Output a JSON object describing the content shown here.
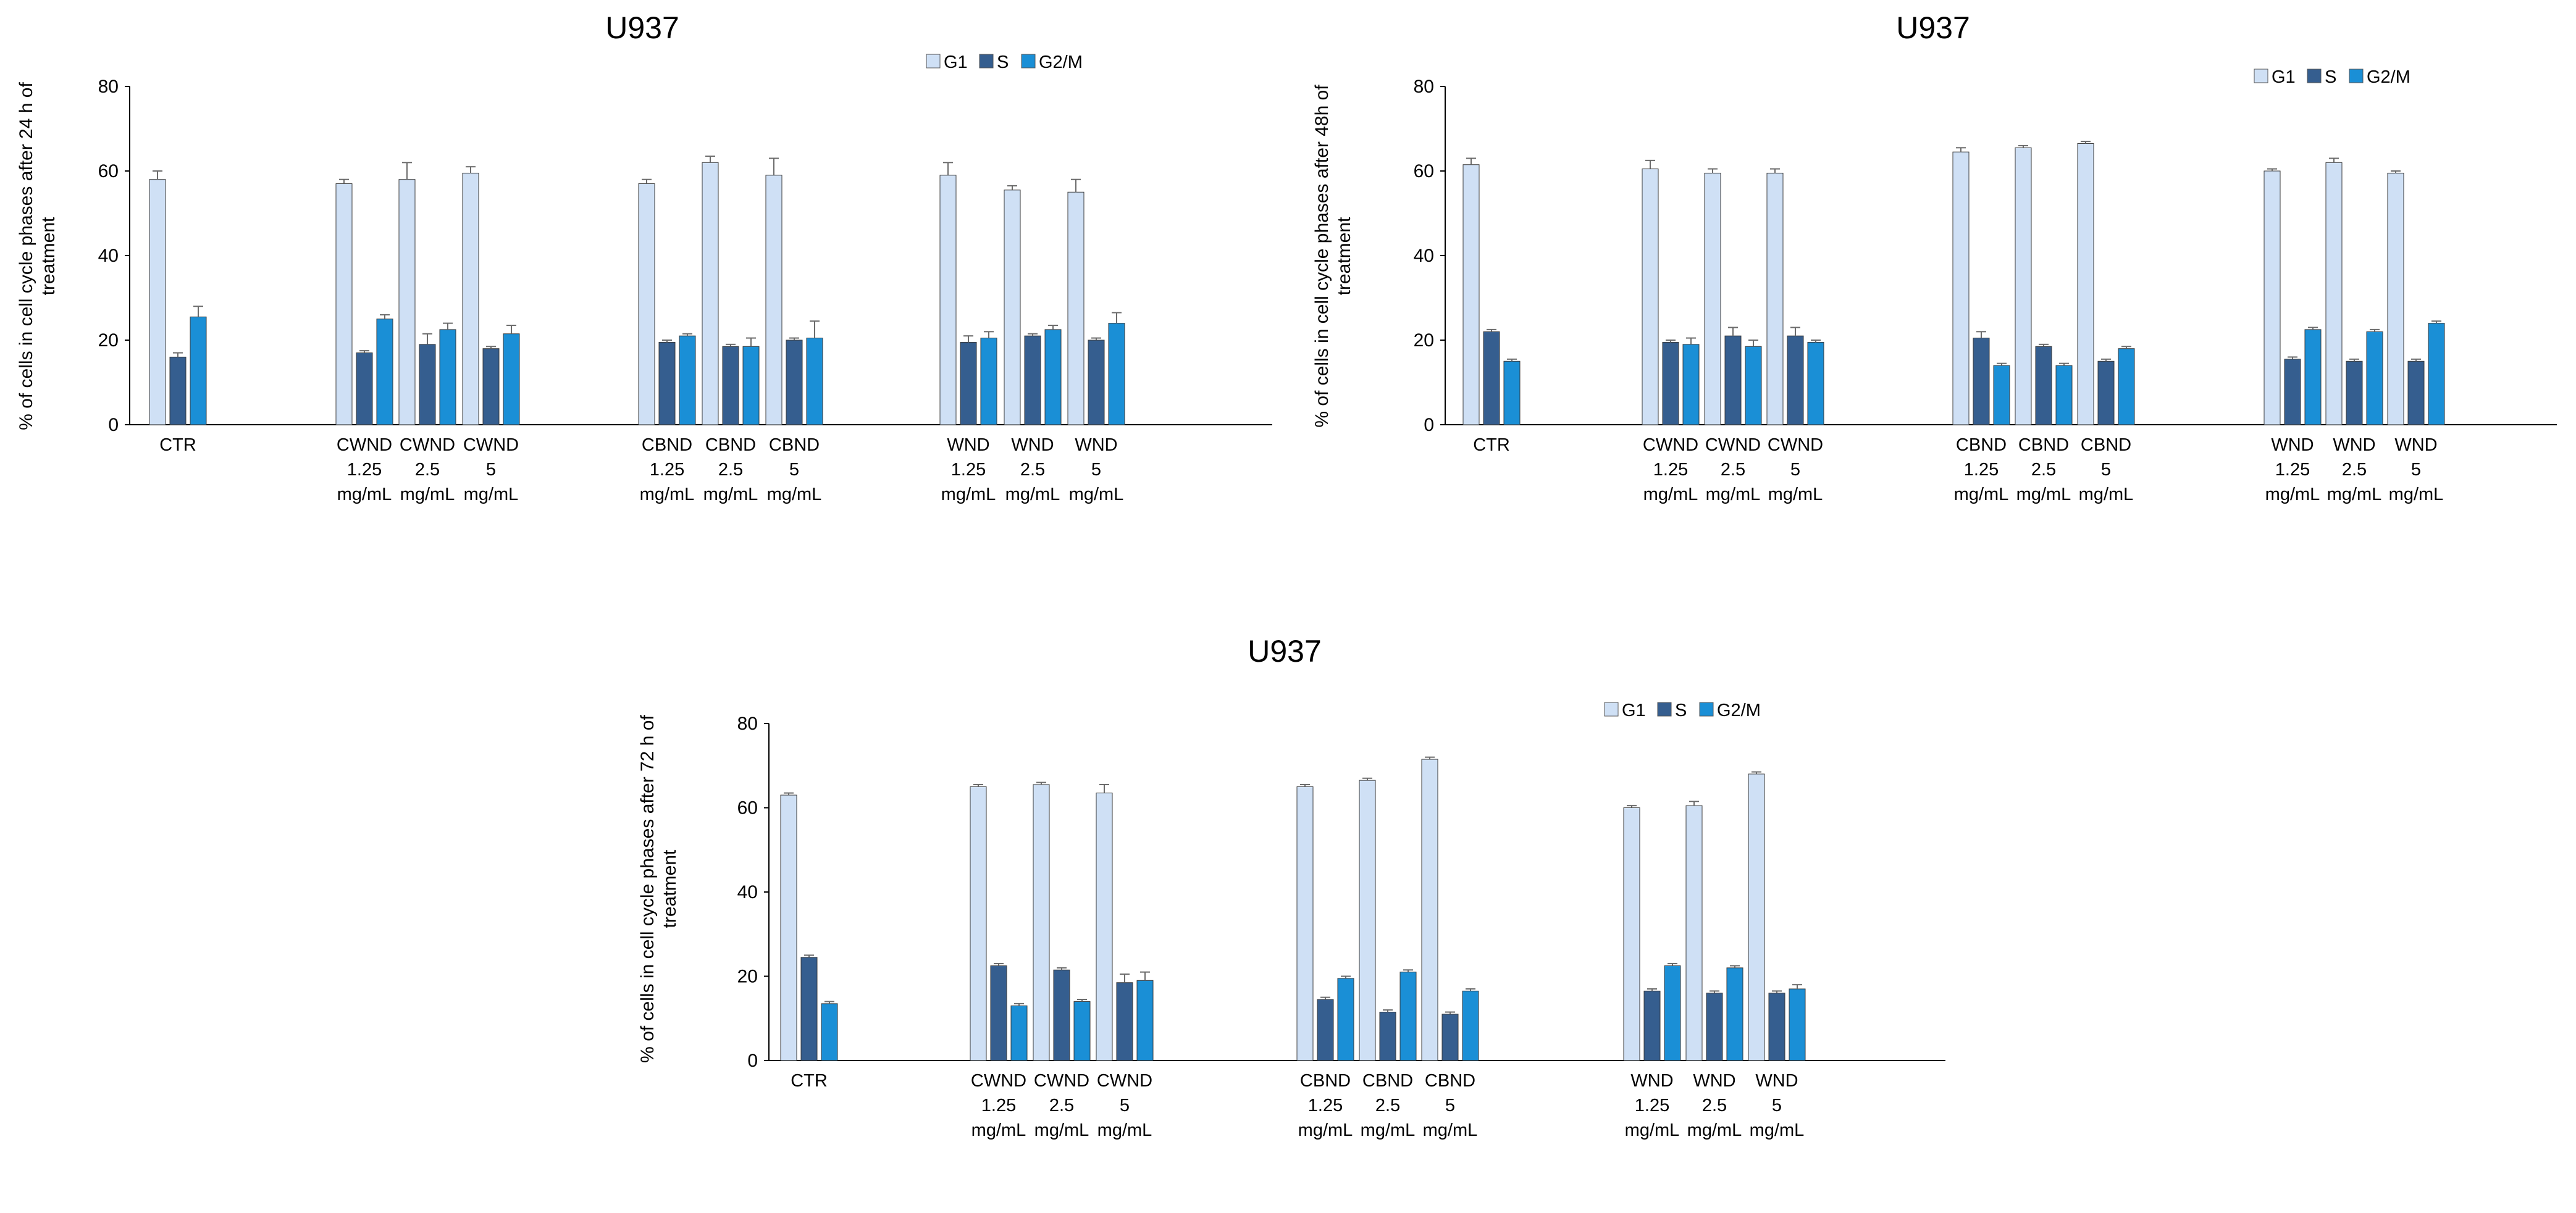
{
  "colors": {
    "G1": "#cfe0f5",
    "S": "#355e8f",
    "G2/M": "#1a8fd6",
    "axis": "#000000",
    "error": "#6b6b6b"
  },
  "chart_data": [
    {
      "type": "bar",
      "title": "U937",
      "ylabel_lines": [
        "% of cells in cell cycle phases after 24 h of",
        "treatment"
      ],
      "ylim": [
        0,
        80
      ],
      "yticks": [
        "0",
        "20",
        "40",
        "60",
        "80"
      ],
      "legend": [
        "G1",
        "S",
        "G2/M"
      ],
      "groups": [
        {
          "label": [
            "CTR"
          ],
          "items": [
            0
          ]
        },
        {
          "label": [
            "CWND",
            "1.25",
            "mg/mL"
          ],
          "items": [
            1,
            2,
            3
          ]
        },
        {
          "label": [
            "CBND",
            "1.25",
            "mg/mL"
          ],
          "items": [
            4,
            5,
            6
          ]
        },
        {
          "label": [
            "WND",
            "1.25",
            "mg/mL"
          ],
          "items": [
            7,
            8,
            9
          ]
        }
      ],
      "categories": [
        [
          "CTR"
        ],
        [
          "CWND",
          "1.25",
          "mg/mL"
        ],
        [
          "CWND",
          "2.5",
          "mg/mL"
        ],
        [
          "CWND",
          "5",
          "mg/mL"
        ],
        [
          "CBND",
          "1.25",
          "mg/mL"
        ],
        [
          "CBND",
          "2.5",
          "mg/mL"
        ],
        [
          "CBND",
          "5",
          "mg/mL"
        ],
        [
          "WND",
          "1.25",
          "mg/mL"
        ],
        [
          "WND",
          "2.5",
          "mg/mL"
        ],
        [
          "WND",
          "5",
          "mg/mL"
        ]
      ],
      "series": [
        {
          "name": "G1",
          "values": [
            58,
            57,
            58,
            59.5,
            57,
            62,
            59,
            59,
            55.5,
            55
          ],
          "errors": [
            2,
            1,
            4,
            1.5,
            1,
            1.5,
            4,
            3,
            1,
            3
          ]
        },
        {
          "name": "S",
          "values": [
            16,
            17,
            19,
            18,
            19.5,
            18.5,
            20,
            19.5,
            21,
            20
          ],
          "errors": [
            1,
            0.5,
            2.5,
            0.5,
            0.5,
            0.5,
            0.5,
            1.5,
            0.5,
            0.5
          ]
        },
        {
          "name": "G2/M",
          "values": [
            25.5,
            25,
            22.5,
            21.5,
            21,
            18.5,
            20.5,
            20.5,
            22.5,
            24
          ],
          "errors": [
            2.5,
            1,
            1.5,
            2,
            0.5,
            2,
            4,
            1.5,
            1,
            2.5
          ]
        }
      ]
    },
    {
      "type": "bar",
      "title": "U937",
      "ylabel_lines": [
        "% of cells in cell cycle phases after 48h of",
        "treatment"
      ],
      "ylim": [
        0,
        80
      ],
      "yticks": [
        "0",
        "20",
        "40",
        "60",
        "80"
      ],
      "legend": [
        "G1",
        "S",
        "G2/M"
      ],
      "categories": [
        [
          "CTR"
        ],
        [
          "CWND",
          "1.25",
          "mg/mL"
        ],
        [
          "CWND",
          "2.5",
          "mg/mL"
        ],
        [
          "CWND",
          "5",
          "mg/mL"
        ],
        [
          "CBND",
          "1.25",
          "mg/mL"
        ],
        [
          "CBND",
          "2.5",
          "mg/mL"
        ],
        [
          "CBND",
          "5",
          "mg/mL"
        ],
        [
          "WND",
          "1.25",
          "mg/mL"
        ],
        [
          "WND",
          "2.5",
          "mg/mL"
        ],
        [
          "WND",
          "5",
          "mg/mL"
        ]
      ],
      "series": [
        {
          "name": "G1",
          "values": [
            61.5,
            60.5,
            59.5,
            59.5,
            64.5,
            65.5,
            66.5,
            60,
            62,
            59.5
          ],
          "errors": [
            1.5,
            2,
            1,
            1,
            1,
            0.5,
            0.5,
            0.5,
            1,
            0.5
          ]
        },
        {
          "name": "S",
          "values": [
            22,
            19.5,
            21,
            21,
            20.5,
            18.5,
            15,
            15.5,
            15,
            15
          ],
          "errors": [
            0.5,
            0.5,
            2,
            2,
            1.5,
            0.5,
            0.5,
            0.5,
            0.5,
            0.5
          ]
        },
        {
          "name": "G2/M",
          "values": [
            15,
            19,
            18.5,
            19.5,
            14,
            14,
            18,
            22.5,
            22,
            24
          ],
          "errors": [
            0.5,
            1.5,
            1.5,
            0.5,
            0.5,
            0.5,
            0.5,
            0.5,
            0.5,
            0.5
          ]
        }
      ]
    },
    {
      "type": "bar",
      "title": "U937",
      "ylabel_lines": [
        "% of cells in cell cycle phases after 72 h of",
        "treatment"
      ],
      "ylim": [
        0,
        80
      ],
      "yticks": [
        "0",
        "20",
        "40",
        "60",
        "80"
      ],
      "legend": [
        "G1",
        "S",
        "G2/M"
      ],
      "categories": [
        [
          "CTR"
        ],
        [
          "CWND",
          "1.25",
          "mg/mL"
        ],
        [
          "CWND",
          "2.5",
          "mg/mL"
        ],
        [
          "CWND",
          "5",
          "mg/mL"
        ],
        [
          "CBND",
          "1.25",
          "mg/mL"
        ],
        [
          "CBND",
          "2.5",
          "mg/mL"
        ],
        [
          "CBND",
          "5",
          "mg/mL"
        ],
        [
          "WND",
          "1.25",
          "mg/mL"
        ],
        [
          "WND",
          "2.5",
          "mg/mL"
        ],
        [
          "WND",
          "5",
          "mg/mL"
        ]
      ],
      "series": [
        {
          "name": "G1",
          "values": [
            63,
            65,
            65.5,
            63.5,
            65,
            66.5,
            71.5,
            60,
            60.5,
            68
          ],
          "errors": [
            0.5,
            0.5,
            0.5,
            2,
            0.5,
            0.5,
            0.5,
            0.5,
            1,
            0.5
          ]
        },
        {
          "name": "S",
          "values": [
            24.5,
            22.5,
            21.5,
            18.5,
            14.5,
            11.5,
            11,
            16.5,
            16,
            16
          ],
          "errors": [
            0.5,
            0.5,
            0.5,
            2,
            0.5,
            0.5,
            0.5,
            0.5,
            0.5,
            0.5
          ]
        },
        {
          "name": "G2/M",
          "values": [
            13.5,
            13,
            14,
            19,
            19.5,
            21,
            16.5,
            22.5,
            22,
            17
          ],
          "errors": [
            0.5,
            0.5,
            0.5,
            2,
            0.5,
            0.5,
            0.5,
            0.5,
            0.5,
            1
          ]
        }
      ]
    }
  ]
}
